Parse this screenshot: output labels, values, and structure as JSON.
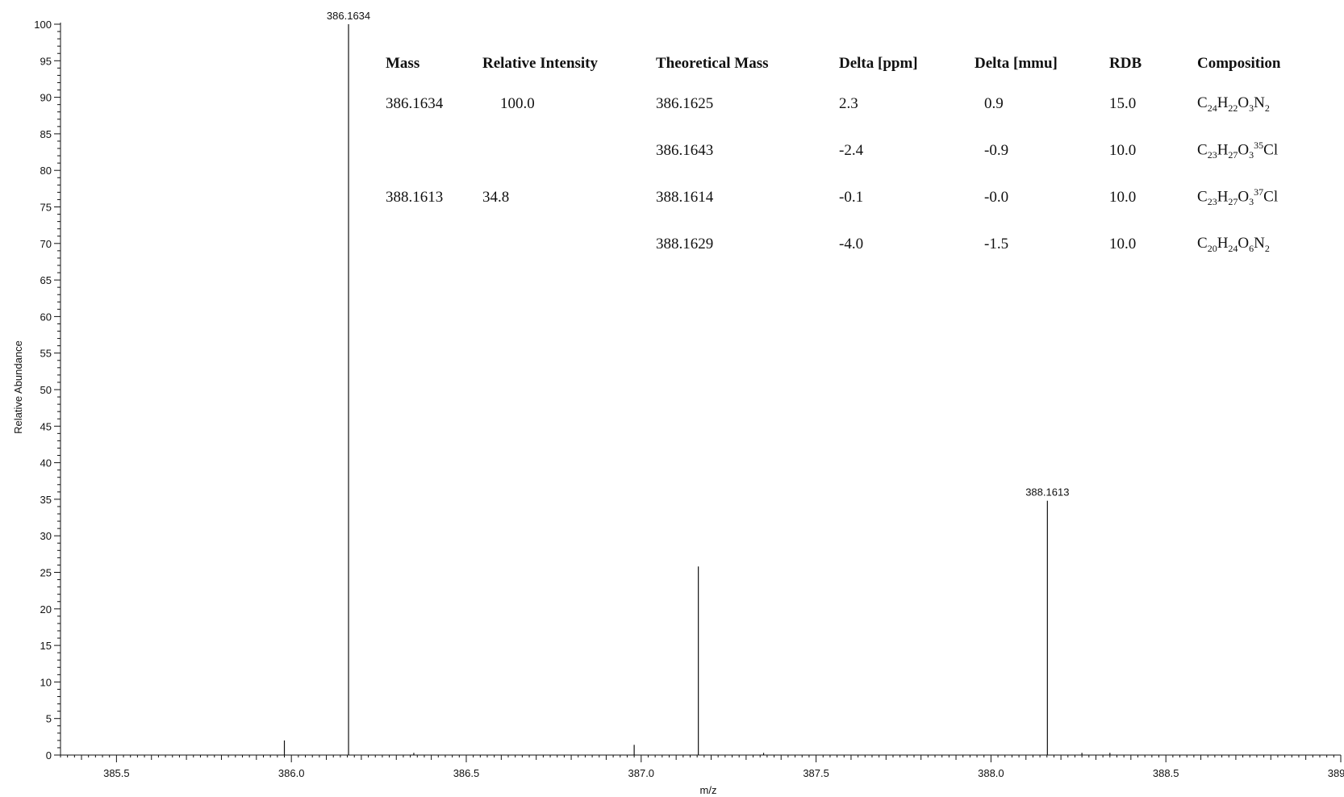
{
  "chart_data": {
    "type": "bar",
    "title": "",
    "xlabel": "m/z",
    "ylabel": "Relative Abundance",
    "xlim": [
      385.34,
      389.0
    ],
    "ylim": [
      0,
      100
    ],
    "x_ticks": [
      "385.5",
      "386.0",
      "386.5",
      "387.0",
      "387.5",
      "388.0",
      "388.5",
      "389.0"
    ],
    "y_ticks": [
      "0",
      "5",
      "10",
      "15",
      "20",
      "25",
      "30",
      "35",
      "40",
      "45",
      "50",
      "55",
      "60",
      "65",
      "70",
      "75",
      "80",
      "85",
      "90",
      "95",
      "100"
    ],
    "grid": false,
    "series": [
      {
        "name": "",
        "x": [
          385.98,
          386.1634,
          386.35,
          386.98,
          387.1634,
          387.35,
          388.1613,
          388.26,
          388.34
        ],
        "values": [
          2.0,
          100.0,
          0.3,
          1.4,
          25.8,
          0.3,
          34.8,
          0.3,
          0.3
        ]
      }
    ],
    "peak_labels": [
      {
        "x": 386.1634,
        "y": 100.0,
        "text": "386.1634"
      },
      {
        "x": 388.1613,
        "y": 34.8,
        "text": "388.1613"
      }
    ]
  },
  "table": {
    "headers": [
      "Mass",
      "Relative Intensity",
      "Theoretical Mass",
      "Delta [ppm]",
      "Delta [mmu]",
      "RDB",
      "Composition"
    ],
    "rows": [
      {
        "mass": "386.1634",
        "rel": "100.0",
        "theo": "386.1625",
        "ppm": "2.3",
        "mmu": "0.9",
        "rdb": "15.0",
        "comp": [
          [
            "C",
            ""
          ],
          [
            "24",
            "sub"
          ],
          [
            "H",
            ""
          ],
          [
            "22",
            "sub"
          ],
          [
            "O",
            ""
          ],
          [
            "3",
            "sub"
          ],
          [
            "N",
            ""
          ],
          [
            "2",
            "sub"
          ]
        ]
      },
      {
        "mass": "",
        "rel": "",
        "theo": "386.1643",
        "ppm": "-2.4",
        "mmu": "-0.9",
        "rdb": "10.0",
        "comp": [
          [
            "C",
            ""
          ],
          [
            "23",
            "sub"
          ],
          [
            "H",
            ""
          ],
          [
            "27",
            "sub"
          ],
          [
            "O",
            ""
          ],
          [
            "3",
            "sub"
          ],
          [
            "35",
            "sup"
          ],
          [
            "Cl",
            ""
          ]
        ]
      },
      {
        "mass": "388.1613",
        "rel": "34.8",
        "theo": "388.1614",
        "ppm": "-0.1",
        "mmu": "-0.0",
        "rdb": "10.0",
        "comp": [
          [
            "C",
            ""
          ],
          [
            "23",
            "sub"
          ],
          [
            "H",
            ""
          ],
          [
            "27",
            "sub"
          ],
          [
            "O",
            ""
          ],
          [
            "3",
            "sub"
          ],
          [
            "37",
            "sup"
          ],
          [
            "Cl",
            ""
          ]
        ]
      },
      {
        "mass": "",
        "rel": "",
        "theo": "388.1629",
        "ppm": "-4.0",
        "mmu": "-1.5",
        "rdb": "10.0",
        "comp": [
          [
            "C",
            ""
          ],
          [
            "20",
            "sub"
          ],
          [
            "H",
            ""
          ],
          [
            "24",
            "sub"
          ],
          [
            "O",
            ""
          ],
          [
            "6",
            "sub"
          ],
          [
            "N",
            ""
          ],
          [
            "2",
            "sub"
          ]
        ]
      }
    ]
  }
}
